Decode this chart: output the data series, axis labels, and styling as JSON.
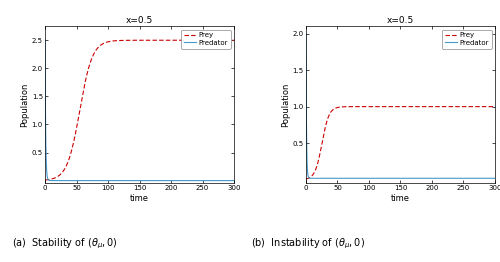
{
  "title": "x=0.5",
  "xlabel": "time",
  "ylabel": "Population",
  "prey_color": "#cc0000",
  "predator_color": "#4499cc",
  "prey_label": "Prey",
  "predator_label": "Predator",
  "t_end": 300,
  "subplot_a_caption": "(a)  Stability of $(\\theta_\\mu,0)$",
  "subplot_b_caption": "(b)  Instability of $(\\theta_\\mu,0)$",
  "ylim_a": [
    -0.05,
    2.75
  ],
  "ylim_b": [
    -0.05,
    2.1
  ],
  "yticks_a": [
    0.5,
    1.0,
    1.5,
    2.0,
    2.5
  ],
  "yticks_b": [
    0.5,
    1.0,
    1.5,
    2.0
  ],
  "xticks": [
    0,
    50,
    100,
    150,
    200,
    250,
    300
  ],
  "background_color": "#f5f5f0",
  "fig_background": "#f0f0ec"
}
